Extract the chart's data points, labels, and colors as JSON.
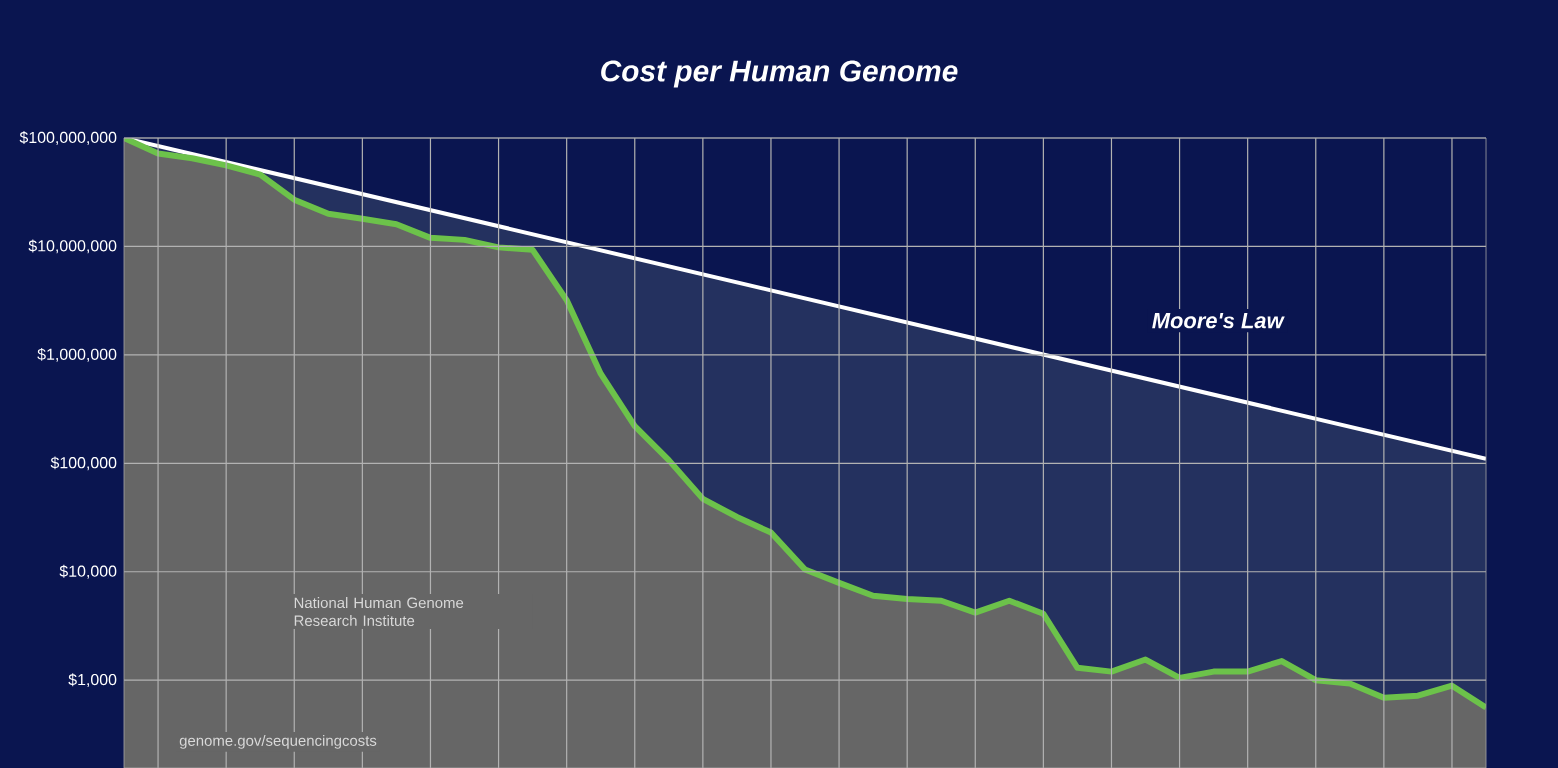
{
  "chart_data": {
    "type": "area",
    "title": "Cost per Human Genome",
    "categories": [
      null,
      null,
      null,
      null,
      null,
      null,
      null,
      null,
      null,
      null,
      null,
      null,
      null,
      null,
      null,
      null,
      null,
      null,
      null,
      null,
      null,
      null,
      null,
      null,
      null,
      null,
      null,
      null,
      null,
      null,
      null,
      null,
      null,
      null,
      null,
      null,
      null,
      null,
      null,
      null,
      null
    ],
    "series": [
      {
        "name": "Moore's Law",
        "type": "line",
        "color": "#ffffff",
        "values": [
          100000000,
          null,
          null,
          null,
          null,
          null,
          null,
          null,
          null,
          null,
          null,
          null,
          null,
          null,
          null,
          null,
          null,
          null,
          null,
          null,
          null,
          null,
          null,
          null,
          null,
          null,
          null,
          null,
          null,
          null,
          null,
          null,
          null,
          null,
          null,
          null,
          null,
          null,
          null,
          null,
          110000
        ]
      },
      {
        "color": "#6cc24a",
        "values": [
          100000000,
          72000000,
          65000000,
          56000000,
          46000000,
          27000000,
          20000000,
          18000000,
          16000000,
          12000000,
          11500000,
          9800000,
          9300000,
          3200000,
          670000,
          220000,
          107000,
          47000,
          32000,
          23000,
          10500,
          7900,
          6000,
          5600,
          5400,
          4200,
          5400,
          4100,
          1300,
          1200,
          1550,
          1050,
          1200,
          1200,
          1500,
          1000,
          930,
          690,
          720,
          890,
          560
        ]
      }
    ],
    "log": "y",
    "ylim": [
      155,
      100000000
    ],
    "yticks": [
      {
        "value": 1000,
        "label": "$1,000"
      },
      {
        "value": 10000,
        "label": "$10,000"
      },
      {
        "value": 100000,
        "label": "$100,000"
      },
      {
        "value": 1000000,
        "label": "$1,000,000"
      },
      {
        "value": 10000000,
        "label": "$10,000,000"
      },
      {
        "value": 100000000,
        "label": "$100,000,000"
      }
    ],
    "grid": true,
    "annotations": [
      "National Human Genome Research Institute",
      "genome.gov/sequencingcosts"
    ]
  }
}
